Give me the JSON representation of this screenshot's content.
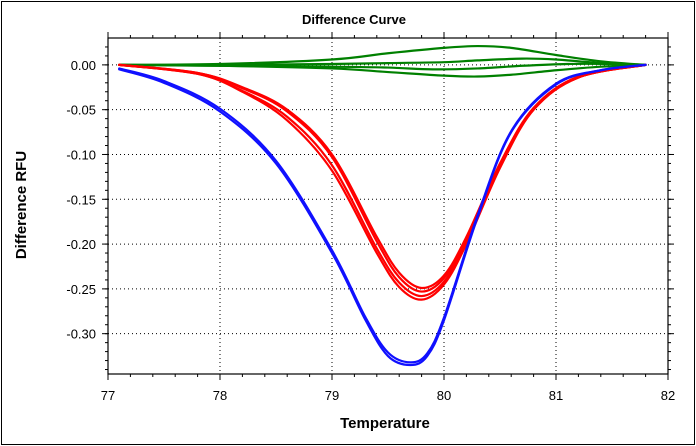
{
  "chart_data": {
    "type": "line",
    "title": "Difference Curve",
    "xlabel": "Temperature",
    "ylabel": "Difference RFU",
    "xlim": [
      77,
      82
    ],
    "ylim": [
      -0.345,
      0.03
    ],
    "x_ticks": [
      "77",
      "78",
      "79",
      "80",
      "81",
      "82"
    ],
    "y_ticks": [
      "0.00",
      "-0.05",
      "-0.10",
      "-0.15",
      "-0.20",
      "-0.25",
      "-0.30"
    ],
    "grid": true,
    "grid_style": "dotted",
    "colors": {
      "blue": "#1010ff",
      "red": "#ff0000",
      "green": "#008000"
    },
    "series": [
      {
        "color": "#1010ff",
        "x": [
          77.1,
          77.5,
          78.0,
          78.5,
          79.0,
          79.3,
          79.5,
          79.7,
          79.85,
          80.0,
          80.3,
          80.6,
          81.0,
          81.4,
          81.8
        ],
        "y": [
          -0.005,
          -0.02,
          -0.052,
          -0.11,
          -0.21,
          -0.285,
          -0.325,
          -0.335,
          -0.325,
          -0.285,
          -0.17,
          -0.075,
          -0.022,
          -0.006,
          0.0
        ]
      },
      {
        "color": "#1010ff",
        "x": [
          77.1,
          77.5,
          78.0,
          78.5,
          79.0,
          79.3,
          79.5,
          79.7,
          79.85,
          80.0,
          80.3,
          80.6,
          81.0,
          81.4,
          81.8
        ],
        "y": [
          -0.004,
          -0.018,
          -0.049,
          -0.107,
          -0.207,
          -0.282,
          -0.321,
          -0.332,
          -0.322,
          -0.282,
          -0.168,
          -0.074,
          -0.021,
          -0.006,
          0.0
        ]
      },
      {
        "color": "#ff0000",
        "x": [
          77.1,
          77.8,
          78.2,
          78.6,
          79.0,
          79.4,
          79.6,
          79.8,
          80.0,
          80.2,
          80.5,
          80.8,
          81.2,
          81.8
        ],
        "y": [
          0.0,
          -0.01,
          -0.03,
          -0.062,
          -0.118,
          -0.21,
          -0.248,
          -0.262,
          -0.245,
          -0.2,
          -0.115,
          -0.05,
          -0.014,
          0.0
        ]
      },
      {
        "color": "#ff0000",
        "x": [
          77.1,
          77.8,
          78.2,
          78.6,
          79.0,
          79.4,
          79.6,
          79.8,
          80.0,
          80.2,
          80.5,
          80.8,
          81.2,
          81.8
        ],
        "y": [
          0.0,
          -0.01,
          -0.029,
          -0.058,
          -0.112,
          -0.205,
          -0.243,
          -0.258,
          -0.242,
          -0.198,
          -0.113,
          -0.05,
          -0.014,
          0.0
        ]
      },
      {
        "color": "#ff0000",
        "x": [
          77.1,
          77.8,
          78.2,
          78.6,
          79.0,
          79.4,
          79.6,
          79.8,
          80.0,
          80.2,
          80.5,
          80.8,
          81.2,
          81.8
        ],
        "y": [
          0.0,
          -0.009,
          -0.026,
          -0.052,
          -0.103,
          -0.197,
          -0.237,
          -0.253,
          -0.238,
          -0.195,
          -0.112,
          -0.049,
          -0.014,
          0.0
        ]
      },
      {
        "color": "#ff0000",
        "x": [
          77.1,
          77.8,
          78.2,
          78.6,
          79.0,
          79.4,
          79.6,
          79.8,
          80.0,
          80.2,
          80.5,
          80.8,
          81.2,
          81.8
        ],
        "y": [
          0.0,
          -0.009,
          -0.025,
          -0.05,
          -0.1,
          -0.192,
          -0.232,
          -0.249,
          -0.235,
          -0.192,
          -0.11,
          -0.048,
          -0.013,
          0.0
        ]
      },
      {
        "color": "#008000",
        "x": [
          77.1,
          78.0,
          79.0,
          79.5,
          80.0,
          80.3,
          80.6,
          81.0,
          81.4,
          81.8
        ],
        "y": [
          0.0,
          0.001,
          0.006,
          0.013,
          0.019,
          0.021,
          0.019,
          0.011,
          0.004,
          0.0
        ]
      },
      {
        "color": "#008000",
        "x": [
          77.1,
          78.0,
          79.0,
          79.5,
          80.0,
          80.3,
          80.7,
          81.0,
          81.4,
          81.8
        ],
        "y": [
          0.0,
          0.0,
          0.001,
          0.002,
          0.003,
          0.005,
          0.007,
          0.006,
          0.002,
          0.0
        ]
      },
      {
        "color": "#008000",
        "x": [
          77.1,
          78.0,
          79.0,
          79.5,
          79.9,
          80.3,
          80.7,
          81.1,
          81.5,
          81.8
        ],
        "y": [
          0.0,
          -0.001,
          -0.002,
          -0.003,
          -0.005,
          -0.004,
          -0.001,
          0.001,
          0.001,
          0.0
        ]
      },
      {
        "color": "#008000",
        "x": [
          77.1,
          78.0,
          79.0,
          79.5,
          80.0,
          80.3,
          80.6,
          81.0,
          81.4,
          81.8
        ],
        "y": [
          0.0,
          -0.001,
          -0.004,
          -0.008,
          -0.012,
          -0.013,
          -0.011,
          -0.006,
          -0.002,
          0.0
        ]
      }
    ]
  }
}
